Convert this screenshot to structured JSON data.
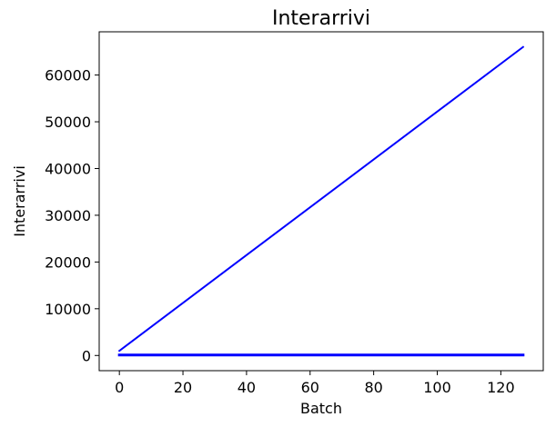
{
  "chart_data": {
    "type": "line",
    "title": "Interarrivi",
    "xlabel": "Batch",
    "ylabel": "Interarrivi",
    "xlim": [
      -6.35,
      133.35
    ],
    "ylim": [
      -3250,
      69250
    ],
    "x_ticks": [
      0,
      20,
      40,
      60,
      80,
      100,
      120
    ],
    "y_ticks": [
      0,
      10000,
      20000,
      30000,
      40000,
      50000,
      60000
    ],
    "grid": false,
    "legend": "none",
    "line_color": "#0000ff",
    "series": [
      {
        "x": [
          0,
          127
        ],
        "values": [
          1000,
          66000
        ]
      },
      {
        "x": [
          0,
          127
        ],
        "values": [
          100,
          100
        ]
      }
    ]
  }
}
